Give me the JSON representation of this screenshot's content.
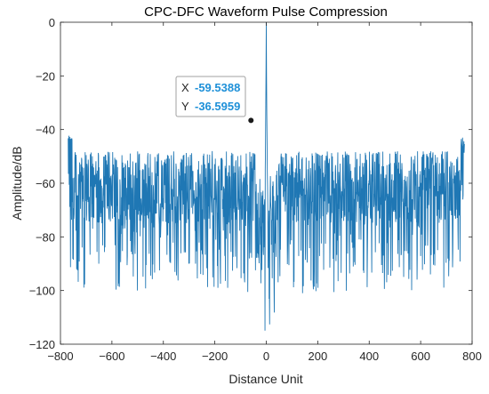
{
  "chart_data": {
    "type": "line",
    "title": "CPC-DFC Waveform Pulse Compression",
    "xlabel": "Distance Unit",
    "ylabel": "Amplitude/dB",
    "xlim": [
      -800,
      800
    ],
    "ylim": [
      -120,
      0
    ],
    "xticks": [
      "-800",
      "-600",
      "-400",
      "-200",
      "0",
      "200",
      "400",
      "600",
      "800"
    ],
    "yticks": [
      "0",
      "-20",
      "-40",
      "-60",
      "-80",
      "-100",
      "-120"
    ],
    "x_range": [
      -770,
      770
    ],
    "peak": {
      "x": 0,
      "y": 0
    },
    "sidelobe_band_db": [
      -48,
      -75
    ],
    "deep_nulls_db": [
      -85,
      -101
    ],
    "grid": false,
    "series_color": "#1f77b4",
    "datatip": {
      "x_label": "X",
      "y_label": "Y",
      "x_value": "-59.5388",
      "y_value": "-36.5959",
      "x": -59.5388,
      "y": -36.5959
    }
  }
}
